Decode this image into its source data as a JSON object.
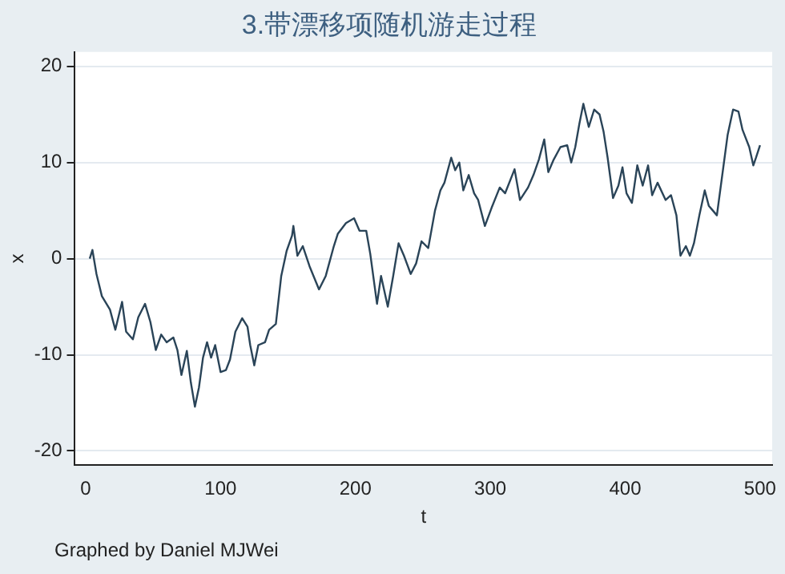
{
  "chart_data": {
    "type": "line",
    "title": "3.带漂移项随机游走过程",
    "xlabel": "t",
    "ylabel": "x",
    "annotations": [
      "Graphed by Daniel MJWei"
    ],
    "x": [
      3,
      5,
      8,
      12,
      18,
      22,
      27,
      30,
      35,
      39,
      44,
      48,
      52,
      56,
      60,
      65,
      68,
      71,
      75,
      78,
      81,
      84,
      87,
      90,
      93,
      96,
      100,
      104,
      107,
      111,
      116,
      120,
      122,
      125,
      128,
      133,
      136,
      141,
      145,
      149,
      153,
      154,
      157,
      161,
      166,
      173,
      178,
      184,
      187,
      193,
      199,
      203,
      208,
      211,
      216,
      219,
      224,
      228,
      232,
      236,
      241,
      245,
      249,
      254,
      259,
      263,
      266,
      271,
      274,
      277,
      280,
      284,
      288,
      291,
      296,
      301,
      307,
      311,
      318,
      322,
      328,
      332,
      336,
      340,
      343,
      347,
      352,
      357,
      360,
      363,
      366,
      369,
      373,
      377,
      381,
      384,
      387,
      391,
      395,
      398,
      401,
      405,
      409,
      413,
      417,
      420,
      424,
      430,
      434,
      438,
      441,
      445,
      448,
      451,
      455,
      459,
      462,
      465,
      468,
      472,
      476,
      480,
      484,
      487,
      492,
      495,
      497,
      500
    ],
    "series": [
      {
        "color": "#2a4458",
        "values": [
          0,
          0.9,
          -1.6,
          -3.9,
          -5.3,
          -7.4,
          -4.5,
          -7.6,
          -8.4,
          -6.1,
          -4.7,
          -6.6,
          -9.5,
          -7.9,
          -8.7,
          -8.2,
          -9.5,
          -12.1,
          -9.6,
          -12.9,
          -15.4,
          -13.4,
          -10.3,
          -8.7,
          -10.3,
          -9,
          -11.8,
          -11.6,
          -10.5,
          -7.6,
          -6.2,
          -7.1,
          -9,
          -11.1,
          -9,
          -8.7,
          -7.4,
          -6.8,
          -1.8,
          0.8,
          2.4,
          3.4,
          0.3,
          1.3,
          -0.8,
          -3.2,
          -1.8,
          1.3,
          2.6,
          3.7,
          4.2,
          2.9,
          2.9,
          0.5,
          -4.7,
          -1.8,
          -5,
          -1.8,
          1.6,
          0.3,
          -1.6,
          -0.5,
          1.8,
          1.1,
          5,
          7.1,
          7.9,
          10.5,
          9.2,
          10,
          7.1,
          8.7,
          6.8,
          6.1,
          3.4,
          5.3,
          7.4,
          6.8,
          9.3,
          6.1,
          7.4,
          8.7,
          10.3,
          12.4,
          9,
          10.3,
          11.6,
          11.8,
          10,
          11.6,
          14,
          16.1,
          13.7,
          15.5,
          15,
          13.2,
          10.5,
          6.3,
          7.6,
          9.5,
          6.8,
          5.8,
          9.7,
          7.6,
          9.7,
          6.6,
          7.9,
          6.1,
          6.6,
          4.5,
          0.3,
          1.3,
          0.3,
          1.6,
          4.5,
          7.1,
          5.5,
          5,
          4.5,
          8.7,
          12.9,
          15.5,
          15.3,
          13.4,
          11.6,
          9.7,
          10.5,
          11.8
        ]
      }
    ],
    "xlim": [
      -8,
      509
    ],
    "ylim": [
      -21.5,
      21.5
    ],
    "xticks": [
      0,
      100,
      200,
      300,
      400,
      500
    ],
    "yticks": [
      -20,
      -10,
      0,
      10,
      20
    ],
    "grid": "y",
    "marker": "none",
    "line_style": "solid",
    "legend": false
  }
}
